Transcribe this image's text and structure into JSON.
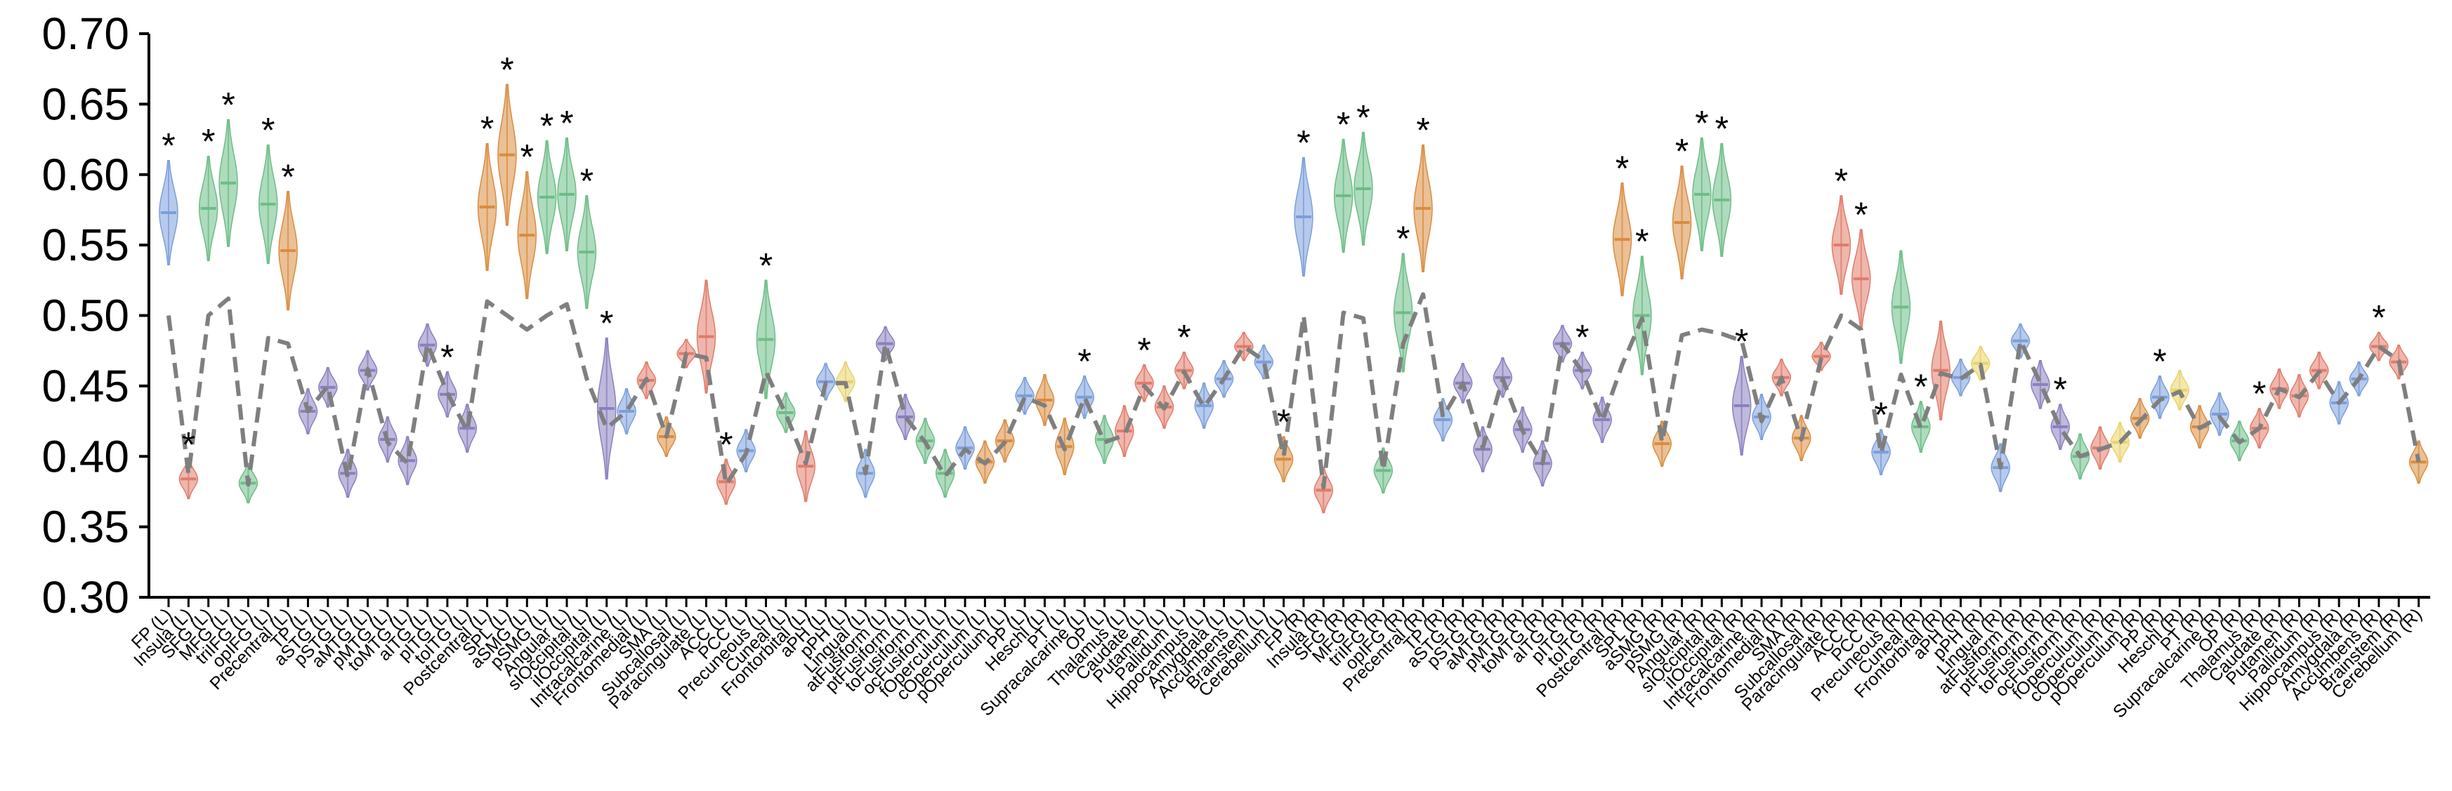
{
  "palette": {
    "blue": "#7b9edb",
    "orange": "#d98c3f",
    "green": "#6cbd86",
    "red": "#e07b6a",
    "purple": "#8a7fc0",
    "yellow": "#e8d36a",
    "baseline": "#7f7f7f"
  },
  "chart_data": {
    "type": "violin",
    "title": "",
    "xlabel": "",
    "ylabel": "",
    "ylim": [
      0.3,
      0.7
    ],
    "yticks": [
      "0.30",
      "0.35",
      "0.40",
      "0.45",
      "0.50",
      "0.55",
      "0.60",
      "0.65",
      "0.70"
    ],
    "grid": false,
    "series": [
      {
        "name": "",
        "categories": [
          "FP (L)",
          "Insula (L)",
          "SFG (L)",
          "MFG (L)",
          "triIFG (L)",
          "opIFG (L)",
          "Precentral (L)",
          "TP (L)",
          "aSTG (L)",
          "pSTG (L)",
          "aMTG (L)",
          "pMTG (L)",
          "toMTG (L)",
          "aITG (L)",
          "pITG (L)",
          "toITG (L)",
          "Postcentral (L)",
          "SPL (L)",
          "aSMG (L)",
          "pSMG (L)",
          "Angular (L)",
          "sIOccipital (L)",
          "iIOccipital (L)",
          "Intracalcarine (L)",
          "Frontomedial (L)",
          "SMA (L)",
          "Subcallosal (L)",
          "Paracingulate (L)",
          "ACC (L)",
          "PCC (L)",
          "Precuneous (L)",
          "Cuneal (L)",
          "Frontorbital (L)",
          "aPH (L)",
          "pPH (L)",
          "Lingual (L)",
          "atFusiform (L)",
          "ptFusiform (L)",
          "toFusiform (L)",
          "ocFusiform (L)",
          "fOperculum (L)",
          "cOperculum (L)",
          "pOperculum (L)",
          "PP (L)",
          "Heschl (L)",
          "PT (L)",
          "Supracalcarine (L)",
          "OP (L)",
          "Thalamus (L)",
          "Caudate (L)",
          "Putamen (L)",
          "Pallidum (L)",
          "Hippocampus (L)",
          "Amygdala (L)",
          "Accumbens (L)",
          "Brainstem (L)",
          "Cerebellum (L)",
          "FP (R)",
          "Insula (R)",
          "SFG (R)",
          "MFG (R)",
          "triIFG (R)",
          "opIFG (R)",
          "Precentral (R)",
          "TP (R)",
          "aSTG (R)",
          "pSTG (R)",
          "aMTG (R)",
          "pMTG (R)",
          "toMTG (R)",
          "aITG (R)",
          "pITG (R)",
          "toITG (R)",
          "Postcentral (R)",
          "SPL (R)",
          "aSMG (R)",
          "pSMG (R)",
          "Angular (R)",
          "sIOccipital (R)",
          "iIOccipital (R)",
          "Intracalcarine (R)",
          "Frontomedial (R)",
          "SMA (R)",
          "Subcallosal (R)",
          "Paracingulate (R)",
          "ACC (R)",
          "PCC (R)",
          "Precuneous (R)",
          "Cuneal (R)",
          "Frontorbital (R)",
          "aPH (R)",
          "pPH (R)",
          "Lingual (R)",
          "atFusiform (R)",
          "ptFusiform (R)",
          "toFusiform (R)",
          "ocFusiform (R)",
          "fOperculum (R)",
          "cOperculum (R)",
          "pOperculum (R)",
          "PP (R)",
          "Heschl (R)",
          "PT (R)",
          "Supracalcarine (R)",
          "OP (R)",
          "Thalamus (R)",
          "Caudate (R)",
          "Putamen (R)",
          "Pallidum (R)",
          "Hippocampus (R)",
          "Amygdala (R)",
          "Accumbens (R)",
          "Brainstem (R)",
          "Cerebellum (R)"
        ],
        "medians": [
          0.573,
          0.384,
          0.576,
          0.594,
          0.381,
          0.579,
          0.546,
          0.432,
          0.449,
          0.388,
          0.461,
          0.412,
          0.397,
          0.479,
          0.444,
          0.42,
          0.577,
          0.614,
          0.557,
          0.584,
          0.586,
          0.545,
          0.434,
          0.432,
          0.454,
          0.414,
          0.473,
          0.485,
          0.382,
          0.404,
          0.483,
          0.431,
          0.393,
          0.453,
          0.453,
          0.388,
          0.48,
          0.428,
          0.411,
          0.388,
          0.406,
          0.396,
          0.411,
          0.443,
          0.44,
          0.407,
          0.442,
          0.412,
          0.418,
          0.452,
          0.435,
          0.461,
          0.436,
          0.455,
          0.478,
          0.467,
          0.398,
          0.57,
          0.376,
          0.585,
          0.59,
          0.39,
          0.502,
          0.576,
          0.426,
          0.452,
          0.405,
          0.456,
          0.419,
          0.395,
          0.48,
          0.461,
          0.426,
          0.554,
          0.5,
          0.409,
          0.566,
          0.586,
          0.582,
          0.436,
          0.428,
          0.456,
          0.413,
          0.471,
          0.55,
          0.526,
          0.403,
          0.506,
          0.421,
          0.461,
          0.456,
          0.466,
          0.392,
          0.482,
          0.451,
          0.421,
          0.4,
          0.406,
          0.41,
          0.427,
          0.442,
          0.447,
          0.421,
          0.43,
          0.411,
          0.42,
          0.448,
          0.443,
          0.461,
          0.438,
          0.455,
          0.478,
          0.467,
          0.396
        ],
        "spreads": [
          0.037,
          0.014,
          0.037,
          0.045,
          0.014,
          0.042,
          0.042,
          0.016,
          0.014,
          0.017,
          0.014,
          0.016,
          0.017,
          0.015,
          0.016,
          0.017,
          0.045,
          0.05,
          0.045,
          0.04,
          0.04,
          0.04,
          0.05,
          0.016,
          0.013,
          0.014,
          0.01,
          0.04,
          0.016,
          0.015,
          0.042,
          0.014,
          0.025,
          0.013,
          0.014,
          0.017,
          0.012,
          0.016,
          0.016,
          0.017,
          0.015,
          0.015,
          0.015,
          0.013,
          0.018,
          0.02,
          0.015,
          0.017,
          0.018,
          0.013,
          0.015,
          0.013,
          0.016,
          0.013,
          0.01,
          0.012,
          0.016,
          0.042,
          0.016,
          0.04,
          0.04,
          0.016,
          0.042,
          0.045,
          0.015,
          0.014,
          0.016,
          0.014,
          0.016,
          0.016,
          0.013,
          0.013,
          0.016,
          0.04,
          0.042,
          0.016,
          0.04,
          0.04,
          0.04,
          0.035,
          0.016,
          0.013,
          0.016,
          0.01,
          0.035,
          0.035,
          0.016,
          0.04,
          0.018,
          0.035,
          0.013,
          0.012,
          0.017,
          0.012,
          0.017,
          0.016,
          0.016,
          0.015,
          0.014,
          0.014,
          0.015,
          0.014,
          0.015,
          0.015,
          0.014,
          0.014,
          0.014,
          0.015,
          0.013,
          0.015,
          0.012,
          0.01,
          0.012,
          0.015
        ],
        "colors": [
          "blue",
          "red",
          "green",
          "green",
          "green",
          "green",
          "orange",
          "purple",
          "purple",
          "purple",
          "purple",
          "purple",
          "purple",
          "purple",
          "purple",
          "purple",
          "orange",
          "orange",
          "orange",
          "green",
          "green",
          "green",
          "purple",
          "blue",
          "red",
          "orange",
          "red",
          "red",
          "red",
          "blue",
          "green",
          "green",
          "red",
          "blue",
          "yellow",
          "blue",
          "purple",
          "purple",
          "green",
          "green",
          "blue",
          "orange",
          "orange",
          "blue",
          "orange",
          "orange",
          "blue",
          "green",
          "red",
          "red",
          "red",
          "red",
          "blue",
          "blue",
          "red",
          "blue",
          "orange",
          "blue",
          "red",
          "green",
          "green",
          "green",
          "green",
          "orange",
          "blue",
          "purple",
          "purple",
          "purple",
          "purple",
          "purple",
          "purple",
          "purple",
          "purple",
          "orange",
          "green",
          "orange",
          "orange",
          "green",
          "green",
          "purple",
          "blue",
          "red",
          "orange",
          "red",
          "red",
          "red",
          "blue",
          "green",
          "green",
          "red",
          "blue",
          "yellow",
          "blue",
          "blue",
          "purple",
          "purple",
          "green",
          "red",
          "yellow",
          "orange",
          "blue",
          "yellow",
          "orange",
          "blue",
          "green",
          "red",
          "red",
          "red",
          "red",
          "blue",
          "blue",
          "red",
          "red",
          "orange"
        ],
        "significant": [
          0,
          1,
          2,
          3,
          5,
          6,
          14,
          16,
          17,
          18,
          19,
          20,
          21,
          22,
          28,
          30,
          46,
          49,
          51,
          56,
          57,
          59,
          60,
          62,
          63,
          71,
          73,
          74,
          76,
          77,
          78,
          79,
          84,
          85,
          86,
          88,
          95,
          100,
          105,
          111
        ]
      },
      {
        "name": "",
        "style": "dashed",
        "values": [
          0.5,
          0.387,
          0.5,
          0.512,
          0.38,
          0.484,
          0.48,
          0.432,
          0.45,
          0.385,
          0.462,
          0.41,
          0.395,
          0.48,
          0.445,
          0.418,
          0.51,
          0.5,
          0.49,
          0.5,
          0.508,
          0.455,
          0.42,
          0.432,
          0.455,
          0.414,
          0.473,
          0.47,
          0.38,
          0.402,
          0.46,
          0.43,
          0.395,
          0.452,
          0.452,
          0.388,
          0.48,
          0.428,
          0.41,
          0.386,
          0.405,
          0.395,
          0.41,
          0.442,
          0.436,
          0.405,
          0.442,
          0.41,
          0.415,
          0.45,
          0.434,
          0.46,
          0.435,
          0.455,
          0.478,
          0.468,
          0.4,
          0.5,
          0.378,
          0.502,
          0.498,
          0.39,
          0.48,
          0.515,
          0.428,
          0.452,
          0.406,
          0.455,
          0.418,
          0.395,
          0.48,
          0.46,
          0.425,
          0.465,
          0.498,
          0.41,
          0.486,
          0.49,
          0.487,
          0.482,
          0.425,
          0.456,
          0.412,
          0.47,
          0.5,
          0.49,
          0.402,
          0.458,
          0.42,
          0.459,
          0.455,
          0.465,
          0.392,
          0.482,
          0.452,
          0.42,
          0.4,
          0.405,
          0.41,
          0.425,
          0.44,
          0.446,
          0.42,
          0.428,
          0.41,
          0.42,
          0.448,
          0.442,
          0.46,
          0.438,
          0.455,
          0.478,
          0.468,
          0.396
        ]
      }
    ]
  }
}
